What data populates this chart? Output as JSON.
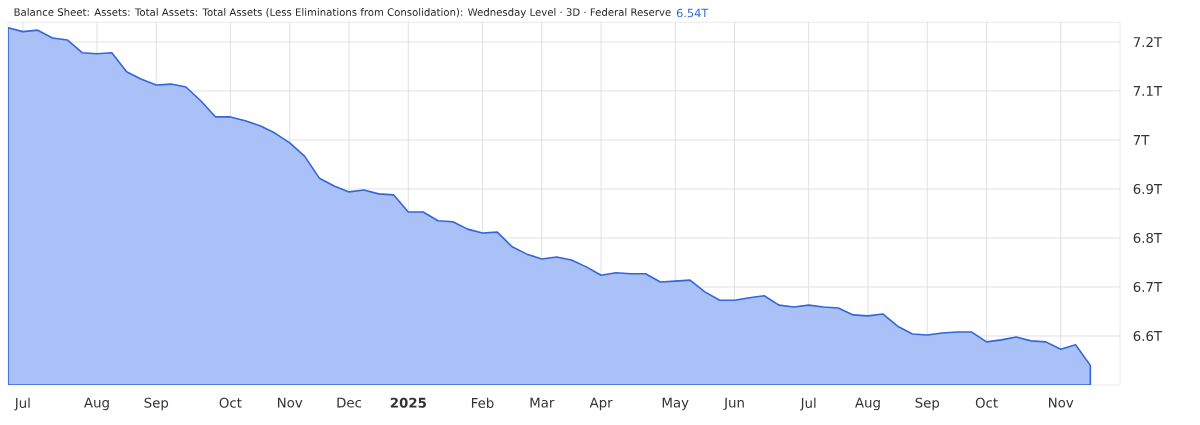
{
  "chart_data": {
    "type": "area",
    "title": "Balance Sheet: Assets: Total Assets: Total Assets (Less Eliminations from Consolidation): Wednesday Level · 3D · Federal Reserve",
    "annotations": [
      "6.54T"
    ],
    "x": [
      "2024-06-26",
      "2024-07-03",
      "2024-07-10",
      "2024-07-17",
      "2024-07-24",
      "2024-07-31",
      "2024-08-07",
      "2024-08-14",
      "2024-08-21",
      "2024-08-28",
      "2024-09-04",
      "2024-09-11",
      "2024-09-18",
      "2024-09-25",
      "2024-10-02",
      "2024-10-09",
      "2024-10-16",
      "2024-10-23",
      "2024-10-30",
      "2024-11-06",
      "2024-11-13",
      "2024-11-20",
      "2024-11-27",
      "2024-12-04",
      "2024-12-11",
      "2024-12-18",
      "2024-12-25",
      "2025-01-01",
      "2025-01-08",
      "2025-01-15",
      "2025-01-22",
      "2025-01-29",
      "2025-02-05",
      "2025-02-12",
      "2025-02-19",
      "2025-02-26",
      "2025-03-05",
      "2025-03-12",
      "2025-03-19",
      "2025-03-26",
      "2025-04-02",
      "2025-04-09",
      "2025-04-16",
      "2025-04-23",
      "2025-04-30",
      "2025-05-07",
      "2025-05-14",
      "2025-05-21",
      "2025-05-28",
      "2025-06-04",
      "2025-06-11",
      "2025-06-18",
      "2025-06-25",
      "2025-07-02",
      "2025-07-09",
      "2025-07-16",
      "2025-07-23",
      "2025-07-30",
      "2025-08-06",
      "2025-08-13",
      "2025-08-20",
      "2025-08-27",
      "2025-09-03",
      "2025-09-10",
      "2025-09-17",
      "2025-09-24",
      "2025-10-01",
      "2025-10-08",
      "2025-10-15",
      "2025-10-22",
      "2025-10-29",
      "2025-11-05",
      "2025-11-12",
      "2025-11-19"
    ],
    "series": [
      {
        "color": "#a9c1f7",
        "values": [
          7.229,
          7.221,
          7.224,
          7.208,
          7.204,
          7.178,
          7.176,
          7.178,
          7.139,
          7.124,
          7.112,
          7.114,
          7.108,
          7.08,
          7.047,
          7.047,
          7.039,
          7.029,
          7.014,
          6.994,
          6.967,
          6.922,
          6.906,
          6.894,
          6.898,
          6.89,
          6.888,
          6.853,
          6.853,
          6.835,
          6.833,
          6.818,
          6.81,
          6.812,
          6.782,
          6.767,
          6.757,
          6.761,
          6.755,
          6.741,
          6.724,
          6.729,
          6.727,
          6.727,
          6.71,
          6.712,
          6.714,
          6.69,
          6.673,
          6.673,
          6.678,
          6.682,
          6.663,
          6.659,
          6.663,
          6.659,
          6.657,
          6.643,
          6.641,
          6.645,
          6.62,
          6.604,
          6.602,
          6.606,
          6.608,
          6.608,
          6.588,
          6.592,
          6.598,
          6.59,
          6.588,
          6.573,
          6.582,
          6.54
        ]
      }
    ],
    "xlim": [
      "2024-06-26",
      "2025-12-03"
    ],
    "xticks": [
      {
        "value": "2024-07-03",
        "label": "Jul"
      },
      {
        "value": "2024-08-07",
        "label": "Aug"
      },
      {
        "value": "2024-09-04",
        "label": "Sep"
      },
      {
        "value": "2024-10-09",
        "label": "Oct"
      },
      {
        "value": "2024-11-06",
        "label": "Nov"
      },
      {
        "value": "2024-12-04",
        "label": "Dec"
      },
      {
        "value": "2025-01-01",
        "label": "**2025**"
      },
      {
        "value": "2025-02-05",
        "label": "Feb"
      },
      {
        "value": "2025-03-05",
        "label": "Mar"
      },
      {
        "value": "2025-04-02",
        "label": "Apr"
      },
      {
        "value": "2025-05-07",
        "label": "May"
      },
      {
        "value": "2025-06-04",
        "label": "Jun"
      },
      {
        "value": "2025-07-09",
        "label": "Jul"
      },
      {
        "value": "2025-08-06",
        "label": "Aug"
      },
      {
        "value": "2025-09-03",
        "label": "Sep"
      },
      {
        "value": "2025-10-01",
        "label": "Oct"
      },
      {
        "value": "2025-11-05",
        "label": "Nov"
      }
    ],
    "ylim": [
      6.5,
      7.24
    ],
    "yticks": [
      {
        "value": 6.6,
        "label": "6.6T"
      },
      {
        "value": 6.7,
        "label": "6.7T"
      },
      {
        "value": 6.8,
        "label": "6.8T"
      },
      {
        "value": 6.9,
        "label": "6.9T"
      },
      {
        "value": 7,
        "label": "7T"
      },
      {
        "value": 7.1,
        "label": "7.1T"
      },
      {
        "value": 7.2,
        "label": "7.2T"
      }
    ],
    "grid": true,
    "marker": "none",
    "line_style": "solid"
  }
}
